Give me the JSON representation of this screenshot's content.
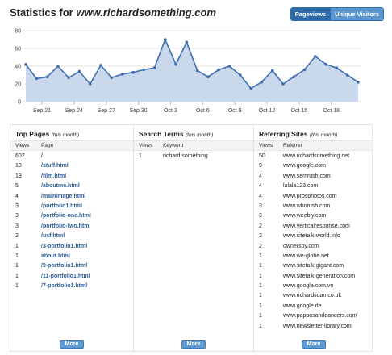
{
  "header": {
    "title_prefix": "Statistics for ",
    "site": "www.richardsomething.com",
    "toggle": {
      "pageviews": "Pageviews",
      "unique_visitors": "Unique Visitors"
    }
  },
  "colors": {
    "accent": "#2d6ca8",
    "line": "#3f6fb0",
    "fill": "#c9d8ea"
  },
  "chart_data": {
    "type": "area",
    "y_ticks": [
      "80",
      "60",
      "40",
      "20",
      "0"
    ],
    "ylim": [
      0,
      80
    ],
    "x_ticks": [
      "Sep 21",
      "Sep 24",
      "Sep 27",
      "Sep 30",
      "Oct 3",
      "Oct 6",
      "Oct 9",
      "Oct 12",
      "Oct 15",
      "Oct 18"
    ],
    "values": [
      42,
      26,
      28,
      40,
      27,
      34,
      20,
      41,
      27,
      31,
      33,
      36,
      38,
      70,
      42,
      67,
      35,
      28,
      36,
      40,
      30,
      15,
      22,
      35,
      20,
      28,
      36,
      51,
      42,
      38,
      30,
      22
    ],
    "grid": true
  },
  "top_pages": {
    "title": "Top Pages",
    "subtitle": "(this month)",
    "col_views": "Views",
    "col_page": "Page",
    "rows": [
      {
        "views": "602",
        "page": "/"
      },
      {
        "views": "18",
        "page": "/stuff.html"
      },
      {
        "views": "18",
        "page": "/film.html"
      },
      {
        "views": "5",
        "page": "/aboutme.html"
      },
      {
        "views": "4",
        "page": "/mainimage.html"
      },
      {
        "views": "3",
        "page": "/portfolio1.html"
      },
      {
        "views": "3",
        "page": "/portfolio-one.html"
      },
      {
        "views": "3",
        "page": "/portfolio-two.html"
      },
      {
        "views": "2",
        "page": "/usf.html"
      },
      {
        "views": "1",
        "page": "/3-portfolio1.html"
      },
      {
        "views": "1",
        "page": "about.html"
      },
      {
        "views": "1",
        "page": "/9-portfolio1.html"
      },
      {
        "views": "1",
        "page": "/11-portfolio1.html"
      },
      {
        "views": "1",
        "page": "/7-portfolio1.html"
      }
    ],
    "more": "More"
  },
  "search_terms": {
    "title": "Search Terms",
    "subtitle": "(this month)",
    "col_views": "Views",
    "col_keyword": "Keyword",
    "rows": [
      {
        "views": "1",
        "keyword": "richard something"
      }
    ],
    "more": "More"
  },
  "referring_sites": {
    "title": "Referring Sites",
    "subtitle": "(this month)",
    "col_views": "Views",
    "col_referrer": "Referrer",
    "rows": [
      {
        "views": "50",
        "referrer": "www.richardsomething.net"
      },
      {
        "views": "9",
        "referrer": "www.google.com"
      },
      {
        "views": "4",
        "referrer": "www.semrush.com"
      },
      {
        "views": "4",
        "referrer": "lalala123.com"
      },
      {
        "views": "4",
        "referrer": "www.prosphotos.com"
      },
      {
        "views": "3",
        "referrer": "www.whorush.com"
      },
      {
        "views": "3",
        "referrer": "www.weebly.com"
      },
      {
        "views": "2",
        "referrer": "www.verticalresponse.com"
      },
      {
        "views": "2",
        "referrer": "www.sitetalk-world.info"
      },
      {
        "views": "2",
        "referrer": "ownerspy.com"
      },
      {
        "views": "1",
        "referrer": "www.we-globe.net"
      },
      {
        "views": "1",
        "referrer": "www.sitetalk-gigant.com"
      },
      {
        "views": "1",
        "referrer": "www.sitetalk-generation.com"
      },
      {
        "views": "1",
        "referrer": "www.google.com.vn"
      },
      {
        "views": "1",
        "referrer": "www.richardsoan.co.uk"
      },
      {
        "views": "1",
        "referrer": "www.google.de"
      },
      {
        "views": "1",
        "referrer": "www.pappasanddancers.com"
      },
      {
        "views": "1",
        "referrer": "www.newsletter-library.com"
      }
    ],
    "more": "More"
  }
}
